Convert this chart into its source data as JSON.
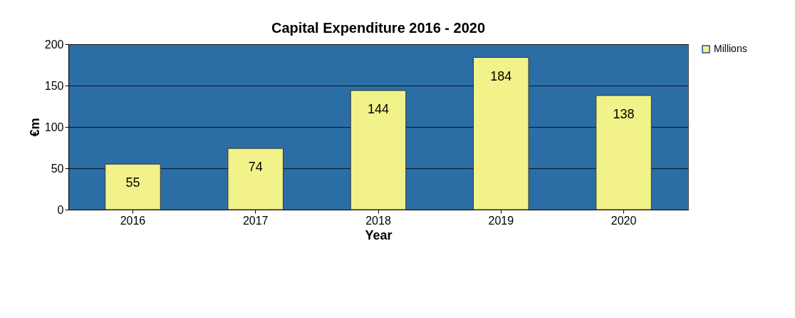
{
  "chart_data": {
    "type": "bar",
    "title": "Capital Expenditure 2016 - 2020",
    "xlabel": "Year",
    "ylabel": "€m",
    "categories": [
      "2016",
      "2017",
      "2018",
      "2019",
      "2020"
    ],
    "series": [
      {
        "name": "Millions",
        "color": "#f2f28a",
        "values": [
          55,
          74,
          144,
          184,
          138
        ]
      }
    ],
    "ylim": [
      0,
      200
    ],
    "yticks": [
      0,
      50,
      100,
      150,
      200
    ],
    "grid": "y",
    "legend": "right",
    "data_labels": true
  }
}
